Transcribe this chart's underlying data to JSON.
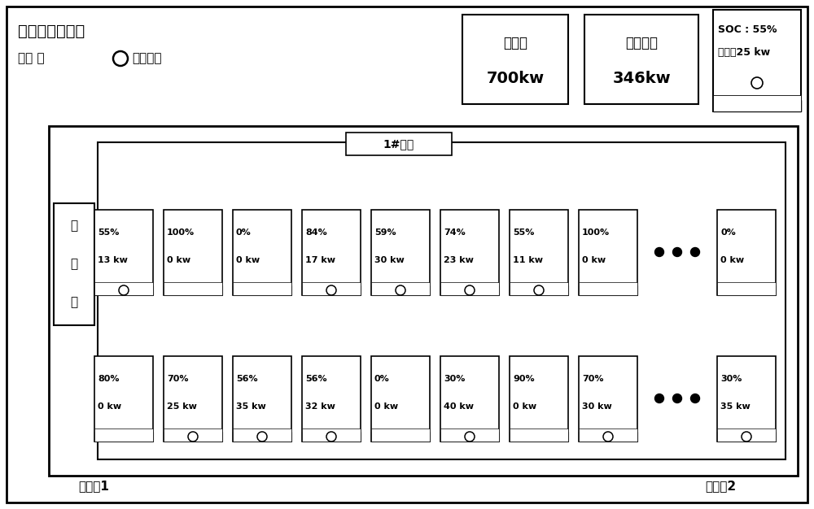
{
  "title": "电动公交充电站",
  "legend_text": "图例 ：  ○  正在充电",
  "total_power_label": "总功率",
  "total_power_value": "700kw",
  "remaining_power_label": "剩余功率",
  "remaining_power_value": "346kw",
  "soc_label": "SOC : 55%",
  "power_label": "功率：25 kw",
  "transformer_label": "1#箱变",
  "dispatch_room_chars": [
    "调",
    "度",
    "室"
  ],
  "exit1": "出入口1",
  "exit2": "出入口2",
  "row1": [
    {
      "soc": "55%",
      "power": "13 kw",
      "charging": true
    },
    {
      "soc": "100%",
      "power": "0 kw",
      "charging": false
    },
    {
      "soc": "0%",
      "power": "0 kw",
      "charging": false
    },
    {
      "soc": "84%",
      "power": "17 kw",
      "charging": true
    },
    {
      "soc": "59%",
      "power": "30 kw",
      "charging": true
    },
    {
      "soc": "74%",
      "power": "23 kw",
      "charging": true
    },
    {
      "soc": "55%",
      "power": "11 kw",
      "charging": true
    },
    {
      "soc": "100%",
      "power": "0 kw",
      "charging": false
    },
    null,
    {
      "soc": "0%",
      "power": "0 kw",
      "charging": false
    }
  ],
  "row2": [
    {
      "soc": "80%",
      "power": "0 kw",
      "charging": false
    },
    {
      "soc": "70%",
      "power": "25 kw",
      "charging": true
    },
    {
      "soc": "56%",
      "power": "35 kw",
      "charging": true
    },
    {
      "soc": "56%",
      "power": "32 kw",
      "charging": true
    },
    {
      "soc": "0%",
      "power": "0 kw",
      "charging": false
    },
    {
      "soc": "30%",
      "power": "40 kw",
      "charging": true
    },
    {
      "soc": "90%",
      "power": "0 kw",
      "charging": false
    },
    {
      "soc": "70%",
      "power": "30 kw",
      "charging": true
    },
    null,
    {
      "soc": "30%",
      "power": "35 kw",
      "charging": true
    }
  ],
  "bg_color": "#ffffff",
  "border_color": "#000000"
}
